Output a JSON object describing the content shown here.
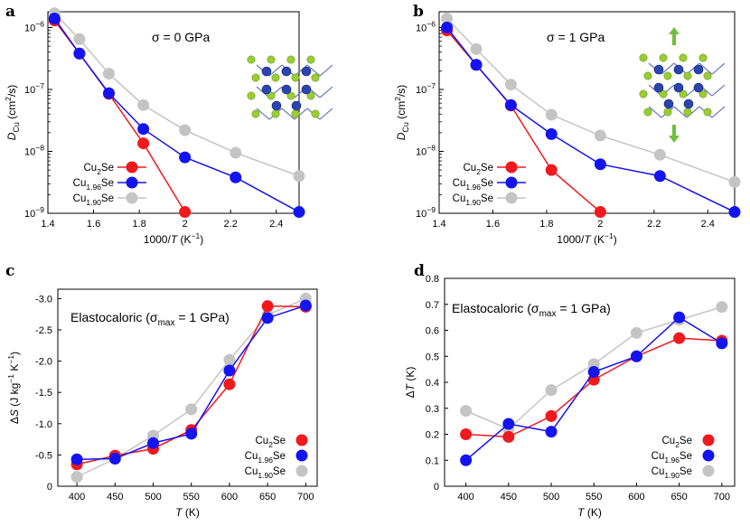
{
  "colors": {
    "cu2se": "#f0191e",
    "cu196": "#1414f0",
    "cu190": "#c4c4c4"
  },
  "series_labels": {
    "cu2se": {
      "base": "Cu",
      "sub": "2",
      "tail": "Se"
    },
    "cu196": {
      "base": "Cu",
      "sub": "1.96",
      "tail": "Se"
    },
    "cu190": {
      "base": "Cu",
      "sub": "1.90",
      "tail": "Se"
    }
  },
  "panels": {
    "a": {
      "letter": "a",
      "annotation": "σ = 0 GPa",
      "xlabel": "1000/T (K⁻¹)",
      "ylabel": "D_Cu (cm²/s)",
      "icon": "crystal-structure-icon"
    },
    "b": {
      "letter": "b",
      "annotation": "σ = 1 GPa",
      "xlabel": "1000/T (K⁻¹)",
      "ylabel": "D_Cu (cm²/s)",
      "icon": "strained-crystal-icon"
    },
    "c": {
      "letter": "c",
      "annotation": "Elastocaloric (σmax = 1 GPa)",
      "xlabel": "T (K)",
      "ylabel": "ΔS (J kg⁻¹ K⁻¹)"
    },
    "d": {
      "letter": "d",
      "annotation": "Elastocaloric (σmax = 1 GPa)",
      "xlabel": "T (K)",
      "ylabel": "ΔT (K)"
    }
  },
  "chart_data": [
    {
      "id": "a",
      "type": "line",
      "yscale": "log",
      "title": "σ = 0 GPa",
      "xlabel": "1000/T (K^-1)",
      "ylabel": "D_Cu (cm^2/s)",
      "xlim": [
        1.4,
        2.5
      ],
      "ylim": [
        1e-09,
        1.8e-06
      ],
      "xticks": [
        "1.4",
        "1.6",
        "1.8",
        "2",
        "2.2",
        "2.4"
      ],
      "yticks": [
        "10^-9",
        "10^-8",
        "10^-7",
        "10^-6"
      ],
      "series": [
        {
          "name": "Cu2Se",
          "x": [
            1.429,
            1.538,
            1.667,
            1.818,
            2.0
          ],
          "values": [
            1.3e-06,
            3.8e-07,
            8.5e-08,
            1.35e-08,
            1.05e-09
          ]
        },
        {
          "name": "Cu1.96Se",
          "x": [
            1.429,
            1.538,
            1.667,
            1.818,
            2.0,
            2.222,
            2.5
          ],
          "values": [
            1.4e-06,
            3.8e-07,
            8.7e-08,
            2.3e-08,
            8e-09,
            3.8e-09,
            1.05e-09
          ]
        },
        {
          "name": "Cu1.90Se",
          "x": [
            1.429,
            1.538,
            1.667,
            1.818,
            2.0,
            2.222,
            2.5
          ],
          "values": [
            1.7e-06,
            6.5e-07,
            1.8e-07,
            5.6e-08,
            2.2e-08,
            9.5e-09,
            4e-09
          ]
        }
      ]
    },
    {
      "id": "b",
      "type": "line",
      "yscale": "log",
      "title": "σ = 1 GPa",
      "xlabel": "1000/T (K^-1)",
      "ylabel": "D_Cu (cm^2/s)",
      "xlim": [
        1.4,
        2.5
      ],
      "ylim": [
        1e-09,
        1.8e-06
      ],
      "xticks": [
        "1.4",
        "1.6",
        "1.8",
        "2",
        "2.2",
        "2.4"
      ],
      "yticks": [
        "10^-9",
        "10^-8",
        "10^-7",
        "10^-6"
      ],
      "series": [
        {
          "name": "Cu2Se",
          "x": [
            1.429,
            1.538,
            1.667,
            1.818,
            2.0
          ],
          "values": [
            9e-07,
            2.5e-07,
            5.5e-08,
            5e-09,
            1.05e-09
          ]
        },
        {
          "name": "Cu1.96Se",
          "x": [
            1.429,
            1.538,
            1.667,
            1.818,
            2.0,
            2.222,
            2.5
          ],
          "values": [
            1e-06,
            2.5e-07,
            5.6e-08,
            1.9e-08,
            6.2e-09,
            4e-09,
            1.05e-09
          ]
        },
        {
          "name": "Cu1.90Se",
          "x": [
            1.429,
            1.538,
            1.667,
            1.818,
            2.0,
            2.222,
            2.5
          ],
          "values": [
            1.4e-06,
            4.5e-07,
            1.2e-07,
            3.9e-08,
            1.8e-08,
            8.8e-09,
            3.2e-09
          ]
        }
      ]
    },
    {
      "id": "c",
      "type": "line",
      "yscale": "linear",
      "yreversed": true,
      "title": "Elastocaloric (σmax = 1 GPa)",
      "xlabel": "T (K)",
      "ylabel": "ΔS (J kg^-1 K^-1)",
      "xlim": [
        375,
        715
      ],
      "ylim": [
        0,
        -3.15
      ],
      "xticks": [
        "400",
        "450",
        "500",
        "550",
        "600",
        "650",
        "700"
      ],
      "yticks": [
        "0",
        "-0.5",
        "-1.0",
        "-1.5",
        "-2.0",
        "-2.5",
        "-3.0"
      ],
      "series": [
        {
          "name": "Cu2Se",
          "x": [
            400,
            450,
            500,
            550,
            600,
            650,
            700
          ],
          "values": [
            -0.35,
            -0.49,
            -0.6,
            -0.9,
            -1.63,
            -2.88,
            -2.87
          ]
        },
        {
          "name": "Cu1.96Se",
          "x": [
            400,
            450,
            500,
            550,
            600,
            650,
            700
          ],
          "values": [
            -0.43,
            -0.44,
            -0.69,
            -0.84,
            -1.85,
            -2.69,
            -2.89
          ]
        },
        {
          "name": "Cu1.90Se",
          "x": [
            400,
            450,
            500,
            550,
            600,
            650,
            700
          ],
          "values": [
            -0.15,
            -0.44,
            -0.81,
            -1.23,
            -2.02,
            -2.74,
            -3.0
          ]
        }
      ]
    },
    {
      "id": "d",
      "type": "line",
      "yscale": "linear",
      "title": "Elastocaloric (σmax = 1 GPa)",
      "xlabel": "T (K)",
      "ylabel": "ΔT (K)",
      "xlim": [
        375,
        715
      ],
      "ylim": [
        0,
        0.8
      ],
      "xticks": [
        "400",
        "450",
        "500",
        "550",
        "600",
        "650",
        "700"
      ],
      "yticks": [
        "0",
        "0.1",
        "0.2",
        "0.3",
        "0.4",
        "0.5",
        "0.6",
        "0.7",
        "0.8"
      ],
      "series": [
        {
          "name": "Cu2Se",
          "x": [
            400,
            450,
            500,
            550,
            600,
            650,
            700
          ],
          "values": [
            0.2,
            0.19,
            0.27,
            0.41,
            0.5,
            0.57,
            0.56
          ]
        },
        {
          "name": "Cu1.96Se",
          "x": [
            400,
            450,
            500,
            550,
            600,
            650,
            700
          ],
          "values": [
            0.1,
            0.24,
            0.21,
            0.44,
            0.5,
            0.65,
            0.55
          ]
        },
        {
          "name": "Cu1.90Se",
          "x": [
            400,
            450,
            500,
            550,
            600,
            650,
            700
          ],
          "values": [
            0.29,
            0.22,
            0.37,
            0.47,
            0.59,
            0.64,
            0.69
          ]
        }
      ]
    }
  ]
}
